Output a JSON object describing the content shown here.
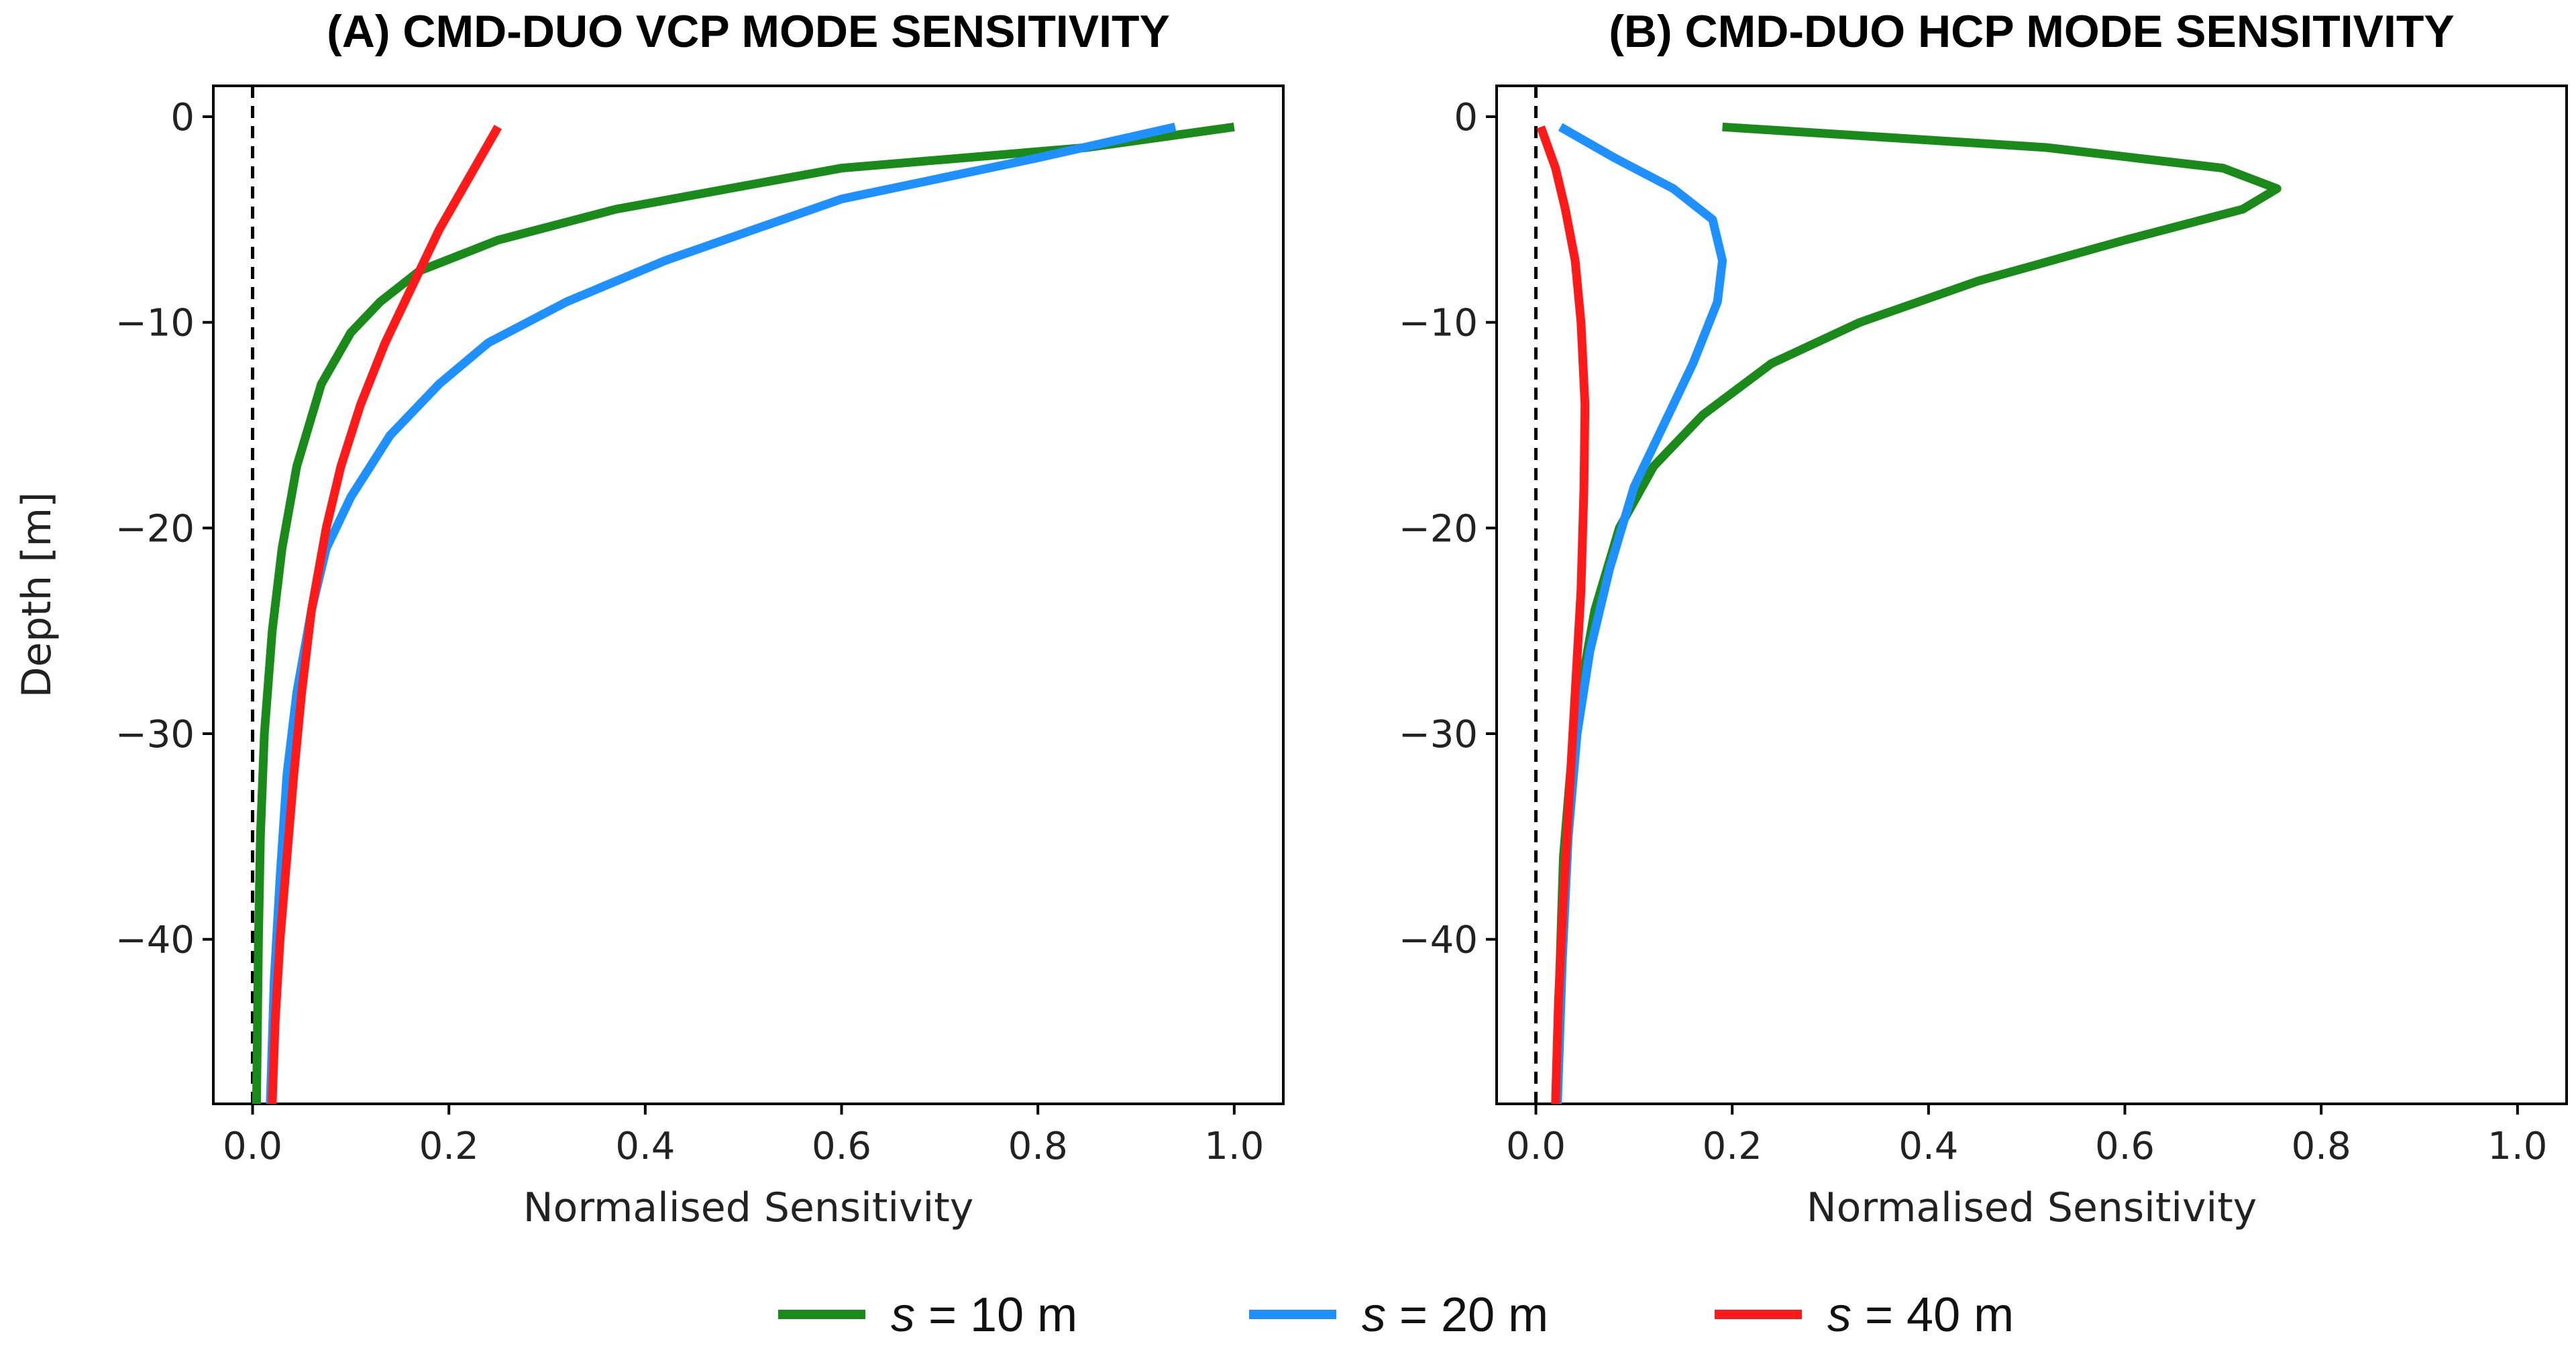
{
  "chart_data": [
    {
      "type": "line",
      "title": "(A) CMD-DUO VCP MODE SENSITIVITY",
      "xlabel": "Normalised Sensitivity",
      "ylabel": "Depth [m]",
      "xlim": [
        -0.04,
        1.05
      ],
      "ylim": [
        -48,
        1.5
      ],
      "xticks": [
        "0.0",
        "0.2",
        "0.4",
        "0.6",
        "0.8",
        "1.0"
      ],
      "yticks": [
        "0",
        "−10",
        "−20",
        "−30",
        "−40"
      ],
      "reference_line": {
        "x": 0,
        "style": "dashed"
      },
      "series": [
        {
          "name": "s = 10 m",
          "color": "#1a8a1a",
          "x": [
            1.0,
            0.85,
            0.6,
            0.37,
            0.25,
            0.17,
            0.13,
            0.1,
            0.07,
            0.045,
            0.03,
            0.02,
            0.012,
            0.008,
            0.006,
            0.004
          ],
          "y": [
            -0.5,
            -1.5,
            -2.5,
            -4.5,
            -6,
            -7.5,
            -9,
            -10.5,
            -13,
            -17,
            -21,
            -25,
            -30,
            -35,
            -40,
            -48
          ]
        },
        {
          "name": "s = 20 m",
          "color": "#1e90ff",
          "x": [
            0.94,
            0.8,
            0.6,
            0.42,
            0.32,
            0.24,
            0.19,
            0.14,
            0.1,
            0.075,
            0.06,
            0.045,
            0.035,
            0.028,
            0.022,
            0.018
          ],
          "y": [
            -0.5,
            -2,
            -4,
            -7,
            -9,
            -11,
            -13,
            -15.5,
            -18.5,
            -21,
            -24,
            -28,
            -32,
            -37,
            -42,
            -48
          ]
        },
        {
          "name": "s = 40 m",
          "color": "#ff1a1a",
          "x": [
            0.25,
            0.22,
            0.19,
            0.16,
            0.135,
            0.11,
            0.09,
            0.075,
            0.06,
            0.05,
            0.042,
            0.035,
            0.028,
            0.023,
            0.02
          ],
          "y": [
            -0.5,
            -3,
            -5.5,
            -8.5,
            -11,
            -14,
            -17,
            -20,
            -24,
            -28,
            -32,
            -36,
            -40,
            -44,
            -48
          ]
        }
      ]
    },
    {
      "type": "line",
      "title": "(B) CMD-DUO HCP MODE SENSITIVITY",
      "xlabel": "Normalised Sensitivity",
      "ylabel": "",
      "xlim": [
        -0.04,
        1.05
      ],
      "ylim": [
        -48,
        1.5
      ],
      "xticks": [
        "0.0",
        "0.2",
        "0.4",
        "0.6",
        "0.8",
        "1.0"
      ],
      "yticks": [
        "0",
        "−10",
        "−20",
        "−30",
        "−40"
      ],
      "reference_line": {
        "x": 0,
        "style": "dashed"
      },
      "series": [
        {
          "name": "s = 10 m",
          "color": "#1a8a1a",
          "x": [
            0.19,
            0.52,
            0.7,
            0.755,
            0.72,
            0.6,
            0.45,
            0.33,
            0.24,
            0.17,
            0.12,
            0.085,
            0.06,
            0.045,
            0.035,
            0.028,
            0.024,
            0.02
          ],
          "y": [
            -0.5,
            -1.5,
            -2.5,
            -3.5,
            -4.5,
            -6,
            -8,
            -10,
            -12,
            -14.5,
            -17,
            -20,
            -24,
            -28,
            -32,
            -36,
            -42,
            -48
          ]
        },
        {
          "name": "s = 20 m",
          "color": "#1e90ff",
          "x": [
            0.025,
            0.08,
            0.14,
            0.18,
            0.19,
            0.185,
            0.16,
            0.13,
            0.1,
            0.075,
            0.055,
            0.042,
            0.033,
            0.027,
            0.022
          ],
          "y": [
            -0.5,
            -2,
            -3.5,
            -5,
            -7,
            -9,
            -12,
            -15,
            -18,
            -22,
            -26,
            -30,
            -35,
            -41,
            -48
          ]
        },
        {
          "name": "s = 40 m",
          "color": "#ff1a1a",
          "x": [
            0.005,
            0.02,
            0.03,
            0.04,
            0.046,
            0.05,
            0.049,
            0.046,
            0.04,
            0.034,
            0.028,
            0.023,
            0.02
          ],
          "y": [
            -0.5,
            -2.5,
            -4.5,
            -7,
            -10,
            -14,
            -18,
            -23,
            -28,
            -33,
            -38,
            -43,
            -48
          ]
        }
      ]
    }
  ],
  "legend": {
    "position": "bottom-center",
    "entries": [
      {
        "prefix": "s",
        "rest": " = 10 m",
        "color": "#1a8a1a"
      },
      {
        "prefix": "s",
        "rest": " = 20 m",
        "color": "#1e90ff"
      },
      {
        "prefix": "s",
        "rest": " = 40 m",
        "color": "#ff1a1a"
      }
    ]
  }
}
